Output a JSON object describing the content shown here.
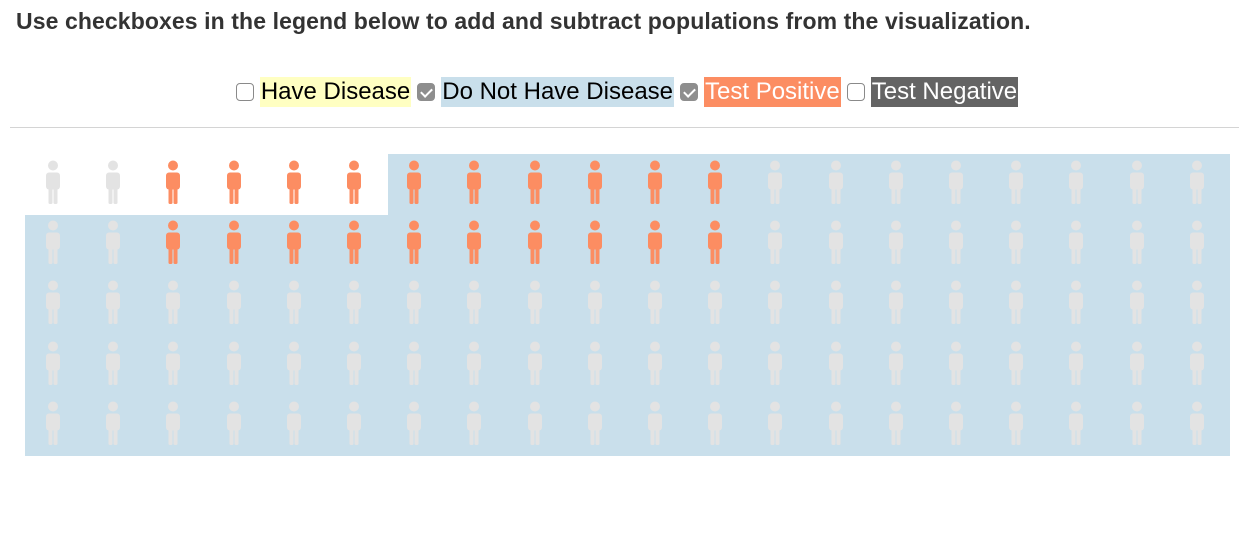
{
  "instructions": "Use checkboxes in the legend below to add and subtract populations from the visualization.",
  "legend": [
    {
      "label": "Have Disease",
      "checked": false,
      "bg": "#ffffc2",
      "fg": "#000000",
      "key": "have-disease"
    },
    {
      "label": "Do Not Have Disease",
      "checked": true,
      "bg": "#c9dfeb",
      "fg": "#000000",
      "key": "no-disease"
    },
    {
      "label": "Test Positive",
      "checked": true,
      "bg": "#fc8d62",
      "fg": "#ffffff",
      "key": "test-positive"
    },
    {
      "label": "Test Negative",
      "checked": false,
      "bg": "#646464",
      "fg": "#ffffff",
      "key": "test-negative"
    }
  ],
  "colors": {
    "no_disease_bg": "#c9dfeb",
    "positive_person": "#fc8d62",
    "neutral_person": "#e3e3e3"
  },
  "grid": {
    "rows": 5,
    "cols": 20,
    "have_disease_count": 6,
    "positive_flags": [
      [
        0,
        0,
        1,
        1,
        1,
        1,
        1,
        1,
        1,
        1,
        1,
        1,
        0,
        0,
        0,
        0,
        0,
        0,
        0,
        0
      ],
      [
        0,
        0,
        1,
        1,
        1,
        1,
        1,
        1,
        1,
        1,
        1,
        1,
        0,
        0,
        0,
        0,
        0,
        0,
        0,
        0
      ],
      [
        0,
        0,
        0,
        0,
        0,
        0,
        0,
        0,
        0,
        0,
        0,
        0,
        0,
        0,
        0,
        0,
        0,
        0,
        0,
        0
      ],
      [
        0,
        0,
        0,
        0,
        0,
        0,
        0,
        0,
        0,
        0,
        0,
        0,
        0,
        0,
        0,
        0,
        0,
        0,
        0,
        0
      ],
      [
        0,
        0,
        0,
        0,
        0,
        0,
        0,
        0,
        0,
        0,
        0,
        0,
        0,
        0,
        0,
        0,
        0,
        0,
        0,
        0
      ]
    ]
  }
}
